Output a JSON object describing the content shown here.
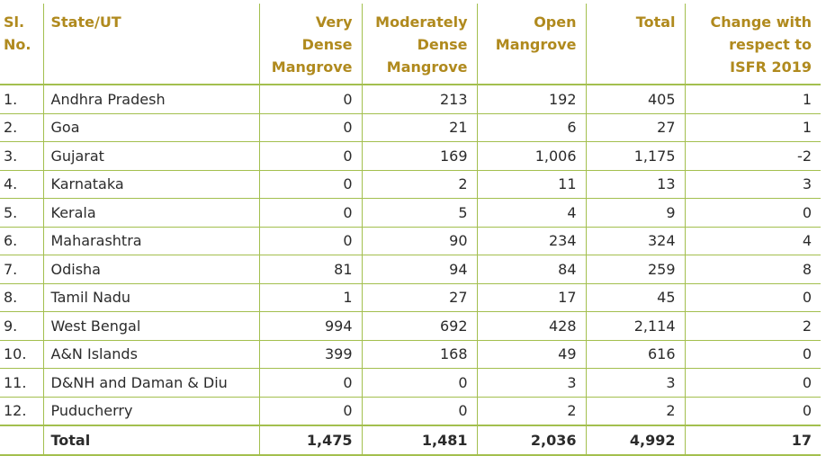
{
  "headers": {
    "sl": "Sl. No.",
    "state": "State/UT",
    "very_dense": "Very Dense Mangrove",
    "moderately_dense": "Moderately Dense Mangrove",
    "open": "Open Mangrove",
    "total": "Total",
    "change": "Change with respect to ISFR 2019"
  },
  "rows": [
    {
      "sl": "1.",
      "state": "Andhra Pradesh",
      "very_dense": "0",
      "moderately_dense": "213",
      "open": "192",
      "total": "405",
      "change": "1"
    },
    {
      "sl": "2.",
      "state": "Goa",
      "very_dense": "0",
      "moderately_dense": "21",
      "open": "6",
      "total": "27",
      "change": "1"
    },
    {
      "sl": "3.",
      "state": "Gujarat",
      "very_dense": "0",
      "moderately_dense": "169",
      "open": "1,006",
      "total": "1,175",
      "change": "-2"
    },
    {
      "sl": "4.",
      "state": "Karnataka",
      "very_dense": "0",
      "moderately_dense": "2",
      "open": "11",
      "total": "13",
      "change": "3"
    },
    {
      "sl": "5.",
      "state": "Kerala",
      "very_dense": "0",
      "moderately_dense": "5",
      "open": "4",
      "total": "9",
      "change": "0"
    },
    {
      "sl": "6.",
      "state": "Maharashtra",
      "very_dense": "0",
      "moderately_dense": "90",
      "open": "234",
      "total": "324",
      "change": "4"
    },
    {
      "sl": "7.",
      "state": "Odisha",
      "very_dense": "81",
      "moderately_dense": "94",
      "open": "84",
      "total": "259",
      "change": "8"
    },
    {
      "sl": "8.",
      "state": "Tamil Nadu",
      "very_dense": "1",
      "moderately_dense": "27",
      "open": "17",
      "total": "45",
      "change": "0"
    },
    {
      "sl": "9.",
      "state": "West Bengal",
      "very_dense": "994",
      "moderately_dense": "692",
      "open": "428",
      "total": "2,114",
      "change": "2"
    },
    {
      "sl": "10.",
      "state": "A&N Islands",
      "very_dense": "399",
      "moderately_dense": "168",
      "open": "49",
      "total": "616",
      "change": "0"
    },
    {
      "sl": "11.",
      "state": "D&NH and Daman & Diu",
      "very_dense": "0",
      "moderately_dense": "0",
      "open": "3",
      "total": "3",
      "change": "0"
    },
    {
      "sl": "12.",
      "state": "Puducherry",
      "very_dense": "0",
      "moderately_dense": "0",
      "open": "2",
      "total": "2",
      "change": "0"
    }
  ],
  "total_row": {
    "label": "Total",
    "very_dense": "1,475",
    "moderately_dense": "1,481",
    "open": "2,036",
    "total": "4,992",
    "change": "17"
  },
  "colors": {
    "header_text": "#b08a1e",
    "rule": "#a3bf4e"
  }
}
